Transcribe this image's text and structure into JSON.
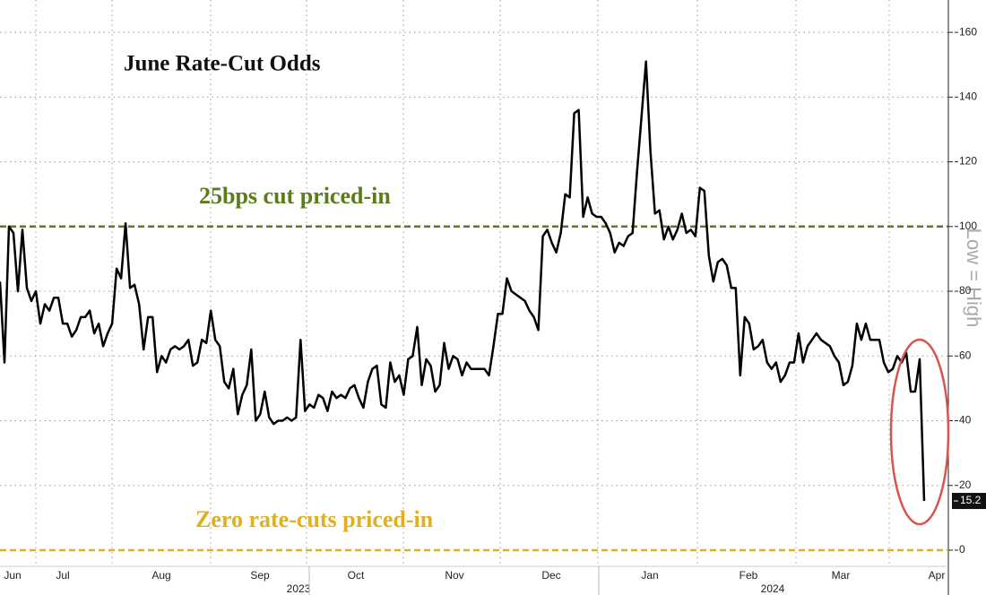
{
  "chart_data": {
    "type": "line",
    "title": "June Rate-Cut Odds",
    "side_label": "Low = High",
    "months": [
      "Jun",
      "Jul",
      "Aug",
      "Sep",
      "Oct",
      "Nov",
      "Dec",
      "Jan",
      "Feb",
      "Mar",
      "Apr"
    ],
    "years": [
      "2023",
      "2024"
    ],
    "series": [
      {
        "name": "June Rate-Cut Odds",
        "color": "#000000",
        "values": [
          83,
          58,
          100,
          98,
          80,
          99,
          81,
          77,
          80,
          70,
          76,
          74,
          78,
          78,
          70,
          70,
          66,
          68,
          72,
          72,
          74,
          67,
          70,
          63,
          67,
          70,
          87,
          84,
          101,
          81,
          82,
          76,
          62,
          72,
          72,
          55,
          60,
          58,
          62,
          63,
          62,
          63,
          65,
          57,
          58,
          65,
          64,
          74,
          65,
          63,
          52,
          50,
          56,
          42,
          48,
          51,
          62,
          40,
          42,
          49,
          41,
          39,
          40,
          40,
          41,
          40,
          41,
          65,
          43,
          45,
          44,
          48,
          47,
          43,
          49,
          47,
          48,
          47,
          50,
          51,
          47,
          44,
          52,
          56,
          57,
          45,
          44,
          58,
          52,
          54,
          48,
          59,
          60,
          69,
          51,
          59,
          57,
          49,
          51,
          64,
          56,
          60,
          59,
          54,
          58,
          56,
          56,
          56,
          56,
          54,
          63,
          73,
          73,
          84,
          80,
          79,
          78,
          77,
          74,
          72,
          68,
          97,
          99,
          95,
          92,
          98,
          110,
          109,
          135,
          136,
          103,
          109,
          104,
          103,
          103,
          101,
          98,
          92,
          95,
          94,
          97,
          98,
          117,
          134,
          151,
          123,
          104,
          105,
          96,
          100,
          96,
          99,
          104,
          98,
          99,
          97,
          112,
          111,
          91,
          83,
          89,
          90,
          88,
          81,
          81,
          54,
          72,
          70,
          62,
          63,
          65,
          58,
          56,
          58,
          52,
          54,
          58,
          58,
          67,
          58,
          63,
          65,
          67,
          65,
          64,
          63,
          60,
          58,
          51,
          52,
          57,
          70,
          65,
          70,
          65,
          65,
          65,
          58,
          55,
          56,
          60,
          58,
          61,
          49,
          49,
          59,
          15.2
        ]
      }
    ],
    "reference_lines": [
      {
        "value": 100,
        "label": "25bps cut priced-in",
        "color": "#5a7d1a"
      },
      {
        "value": 0,
        "label": "Zero rate-cuts priced-in",
        "color": "#e0b020"
      }
    ],
    "ylim": [
      -5,
      170
    ],
    "yticks": [
      0,
      20,
      40,
      60,
      80,
      100,
      120,
      140,
      160
    ],
    "grid": true
  }
}
